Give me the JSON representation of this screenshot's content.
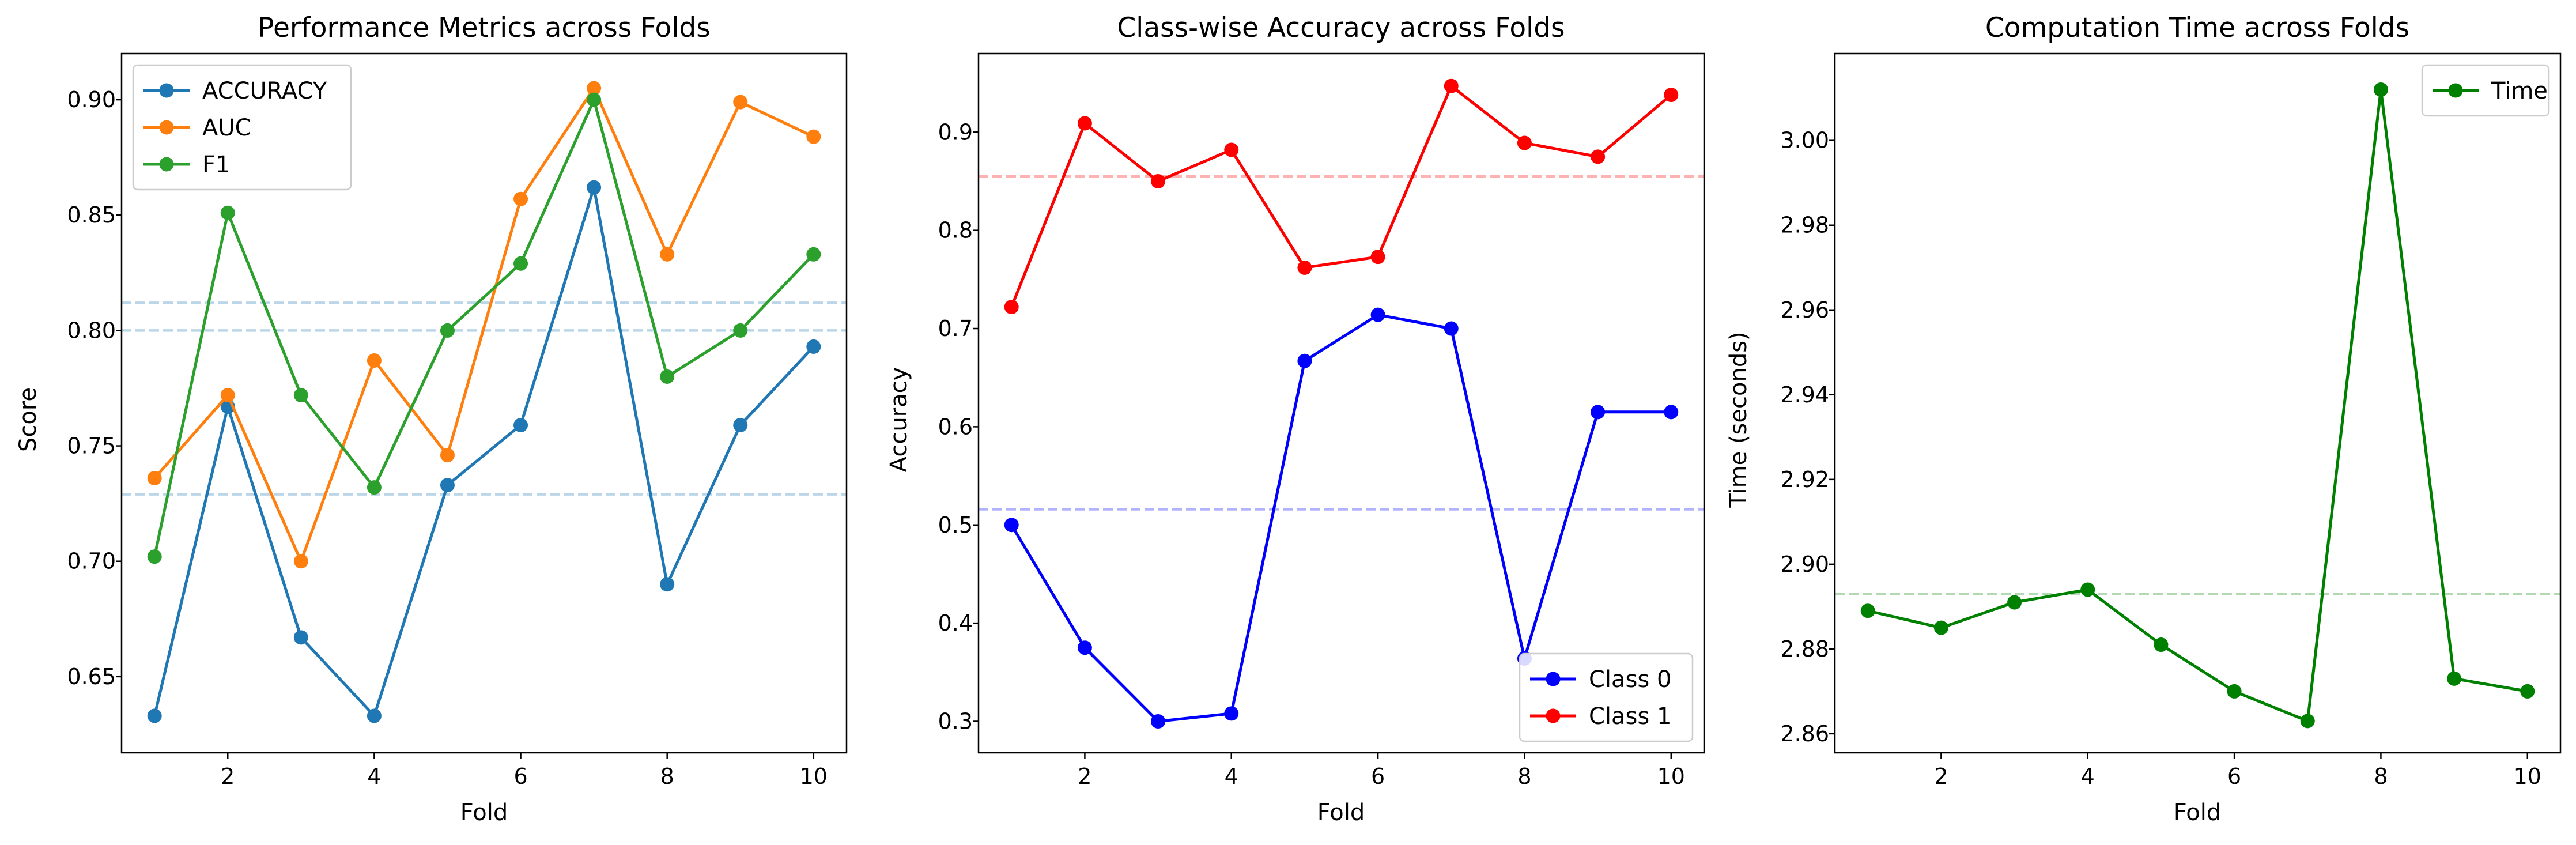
{
  "chart_data": [
    {
      "type": "line",
      "title": "Performance Metrics across Folds",
      "xlabel": "Fold",
      "ylabel": "Score",
      "xlim": [
        0.55,
        10.45
      ],
      "ylim": [
        0.617,
        0.92
      ],
      "xticks": [
        2,
        4,
        6,
        8,
        10
      ],
      "yticks": [
        0.65,
        0.7,
        0.75,
        0.8,
        0.85,
        0.9
      ],
      "ytick_labels": [
        "0.65",
        "0.70",
        "0.75",
        "0.80",
        "0.85",
        "0.90"
      ],
      "legend_position": "upper-left",
      "x": [
        1,
        2,
        3,
        4,
        5,
        6,
        7,
        8,
        9,
        10
      ],
      "series": [
        {
          "name": "ACCURACY",
          "color": "#1f77b4",
          "values": [
            0.633,
            0.767,
            0.667,
            0.633,
            0.733,
            0.759,
            0.862,
            0.69,
            0.759,
            0.793
          ]
        },
        {
          "name": "AUC",
          "color": "#ff7f0e",
          "values": [
            0.736,
            0.772,
            0.7,
            0.787,
            0.746,
            0.857,
            0.905,
            0.833,
            0.899,
            0.884
          ]
        },
        {
          "name": "F1",
          "color": "#2ca02c",
          "values": [
            0.702,
            0.851,
            0.772,
            0.732,
            0.8,
            0.829,
            0.9,
            0.78,
            0.8,
            0.833
          ]
        }
      ],
      "reference_lines": [
        {
          "y": 0.812,
          "color": "#1f77b4"
        },
        {
          "y": 0.8,
          "color": "#1f77b4"
        },
        {
          "y": 0.729,
          "color": "#1f77b4"
        }
      ]
    },
    {
      "type": "line",
      "title": "Class-wise Accuracy across Folds",
      "xlabel": "Fold",
      "ylabel": "Accuracy",
      "xlim": [
        0.55,
        10.45
      ],
      "ylim": [
        0.268,
        0.98
      ],
      "xticks": [
        2,
        4,
        6,
        8,
        10
      ],
      "yticks": [
        0.3,
        0.4,
        0.5,
        0.6,
        0.7,
        0.8,
        0.9
      ],
      "ytick_labels": [
        "0.3",
        "0.4",
        "0.5",
        "0.6",
        "0.7",
        "0.8",
        "0.9"
      ],
      "legend_position": "lower-right",
      "x": [
        1,
        2,
        3,
        4,
        5,
        6,
        7,
        8,
        9,
        10
      ],
      "series": [
        {
          "name": "Class 0",
          "color": "#0000ff",
          "values": [
            0.5,
            0.375,
            0.3,
            0.308,
            0.667,
            0.714,
            0.7,
            0.364,
            0.615,
            0.615
          ]
        },
        {
          "name": "Class 1",
          "color": "#ff0000",
          "values": [
            0.722,
            0.909,
            0.85,
            0.882,
            0.762,
            0.773,
            0.947,
            0.889,
            0.875,
            0.938
          ]
        }
      ],
      "reference_lines": [
        {
          "y": 0.855,
          "color": "#ff0000"
        },
        {
          "y": 0.516,
          "color": "#0000ff"
        }
      ]
    },
    {
      "type": "line",
      "title": "Computation Time across Folds",
      "xlabel": "Fold",
      "ylabel": "Time (seconds)",
      "xlim": [
        0.55,
        10.45
      ],
      "ylim": [
        2.8555,
        3.0205
      ],
      "xticks": [
        2,
        4,
        6,
        8,
        10
      ],
      "yticks": [
        2.86,
        2.88,
        2.9,
        2.92,
        2.94,
        2.96,
        2.98,
        3.0
      ],
      "ytick_labels": [
        "2.86",
        "2.88",
        "2.90",
        "2.92",
        "2.94",
        "2.96",
        "2.98",
        "3.00"
      ],
      "legend_position": "upper-right",
      "x": [
        1,
        2,
        3,
        4,
        5,
        6,
        7,
        8,
        9,
        10
      ],
      "series": [
        {
          "name": "Time",
          "color": "#008000",
          "values": [
            2.889,
            2.885,
            2.891,
            2.894,
            2.881,
            2.87,
            2.863,
            3.012,
            2.873,
            2.87
          ]
        }
      ],
      "reference_lines": [
        {
          "y": 2.893,
          "color": "#008000"
        }
      ]
    }
  ]
}
